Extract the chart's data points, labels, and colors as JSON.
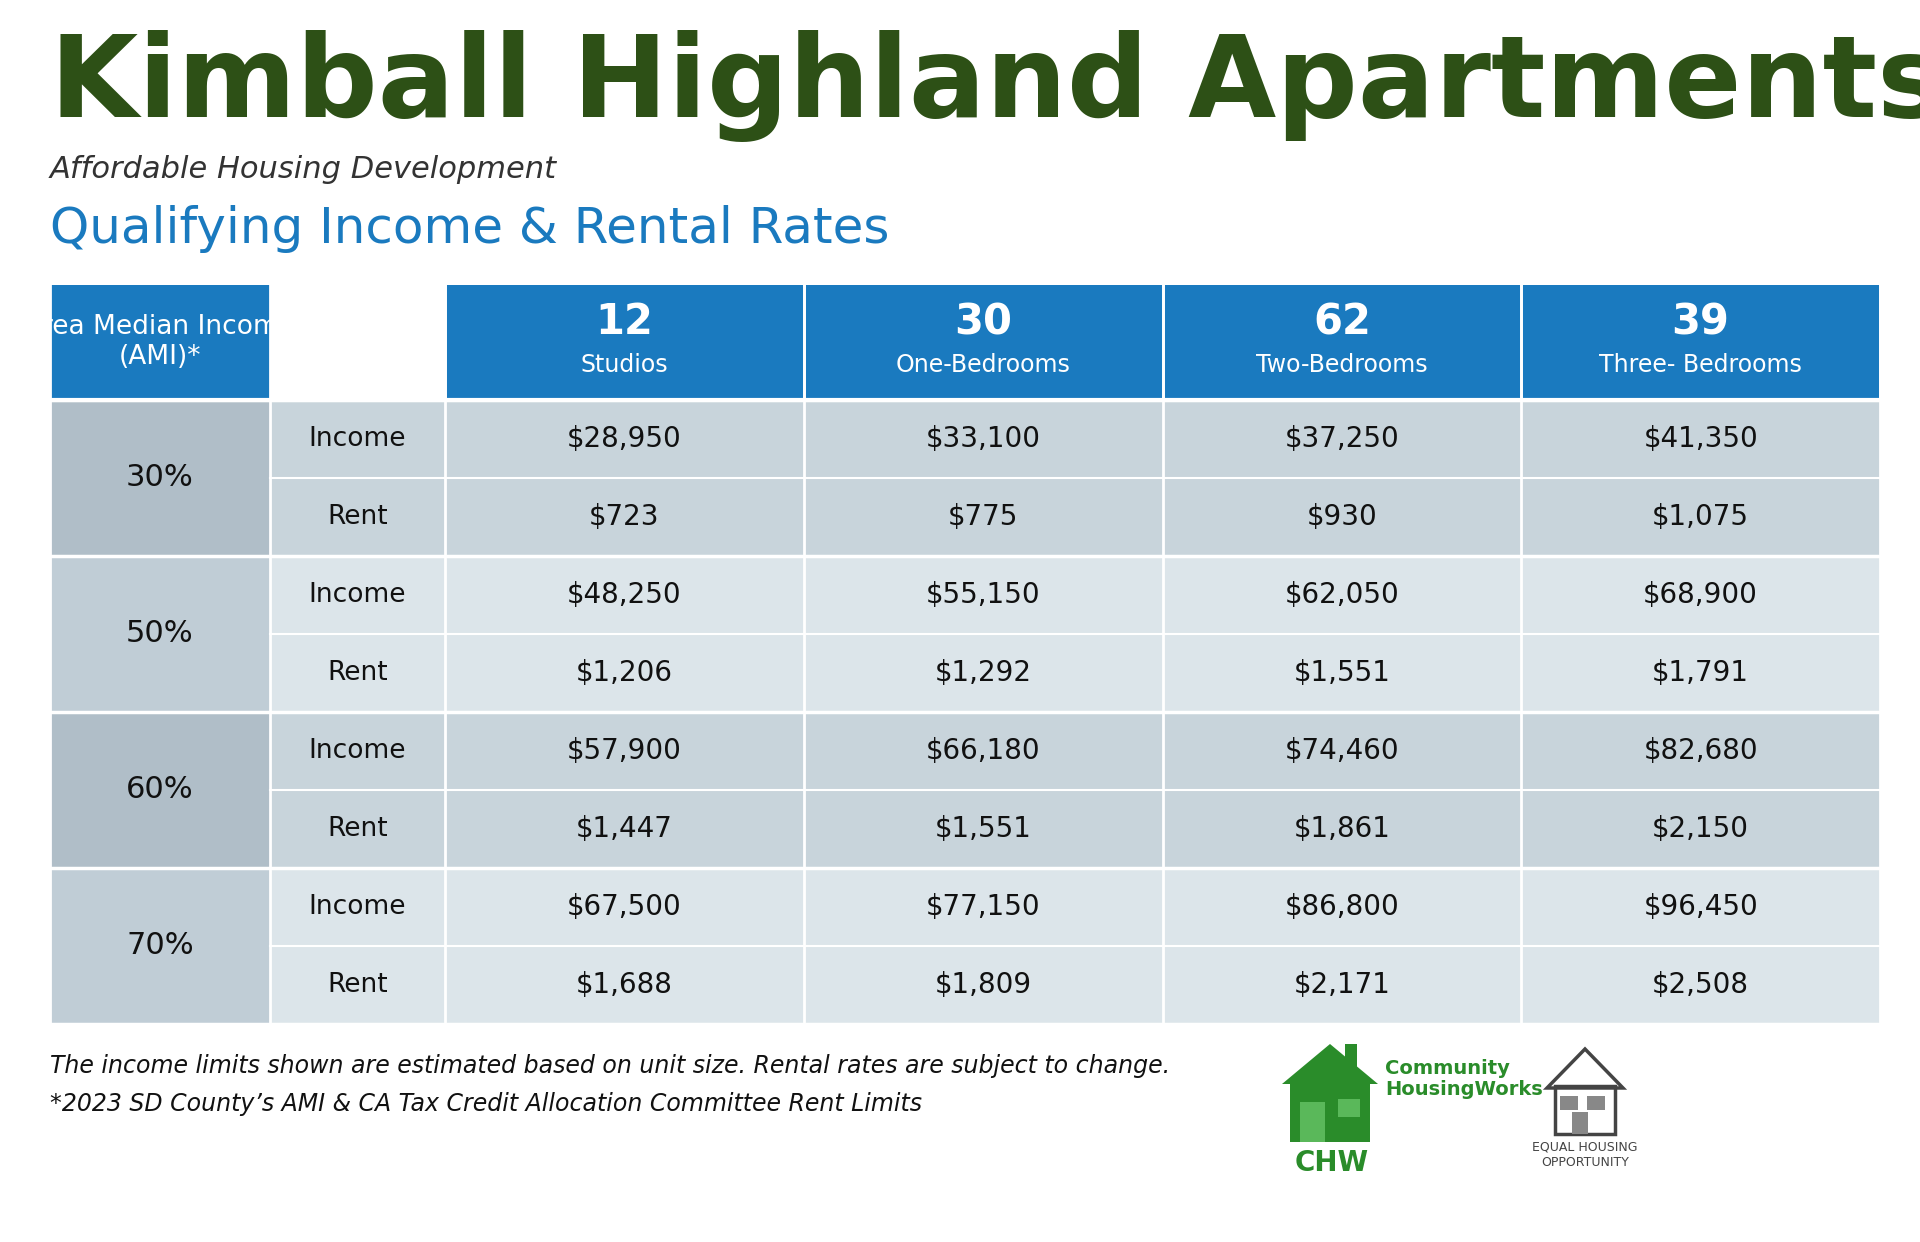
{
  "title": "Kimball Highland Apartments",
  "subtitle": "Affordable Housing Development",
  "section_title": "Qualifying Income & Rental Rates",
  "title_color": "#2d5016",
  "subtitle_color": "#333333",
  "section_title_color": "#1a7abf",
  "header_bg_color": "#1a7abf",
  "header_text_color": "#ffffff",
  "row_bg_a": "#c8d4db",
  "row_bg_b": "#dce5ea",
  "ami_bg_a": "#b0bec8",
  "ami_bg_b": "#c0cdd6",
  "row_text_color": "#111111",
  "col_headers": [
    {
      "number": "12",
      "label": "Studios"
    },
    {
      "number": "30",
      "label": "One-Bedrooms"
    },
    {
      "number": "62",
      "label": "Two-Bedrooms"
    },
    {
      "number": "39",
      "label": "Three- Bedrooms"
    }
  ],
  "col_header_first": "Area Median Income\n(AMI)*",
  "ami_levels": [
    "30%",
    "50%",
    "60%",
    "70%"
  ],
  "row_types": [
    "Income",
    "Rent"
  ],
  "table_data": {
    "30%": {
      "Income": [
        "$28,950",
        "$33,100",
        "$37,250",
        "$41,350"
      ],
      "Rent": [
        "$723",
        "$775",
        "$930",
        "$1,075"
      ]
    },
    "50%": {
      "Income": [
        "$48,250",
        "$55,150",
        "$62,050",
        "$68,900"
      ],
      "Rent": [
        "$1,206",
        "$1,292",
        "$1,551",
        "$1,791"
      ]
    },
    "60%": {
      "Income": [
        "$57,900",
        "$66,180",
        "$74,460",
        "$82,680"
      ],
      "Rent": [
        "$1,447",
        "$1,551",
        "$1,861",
        "$2,150"
      ]
    },
    "70%": {
      "Income": [
        "$67,500",
        "$77,150",
        "$86,800",
        "$96,450"
      ],
      "Rent": [
        "$1,688",
        "$1,809",
        "$2,171",
        "$2,508"
      ]
    }
  },
  "footnote1": "The income limits shown are estimated based on unit size. Rental rates are subject to change.",
  "footnote2": "*2023 SD County’s AMI & CA Tax Credit Allocation Committee Rent Limits",
  "footnote_color": "#111111",
  "background_color": "#ffffff",
  "fig_width": 19.2,
  "fig_height": 12.42,
  "dpi": 100
}
